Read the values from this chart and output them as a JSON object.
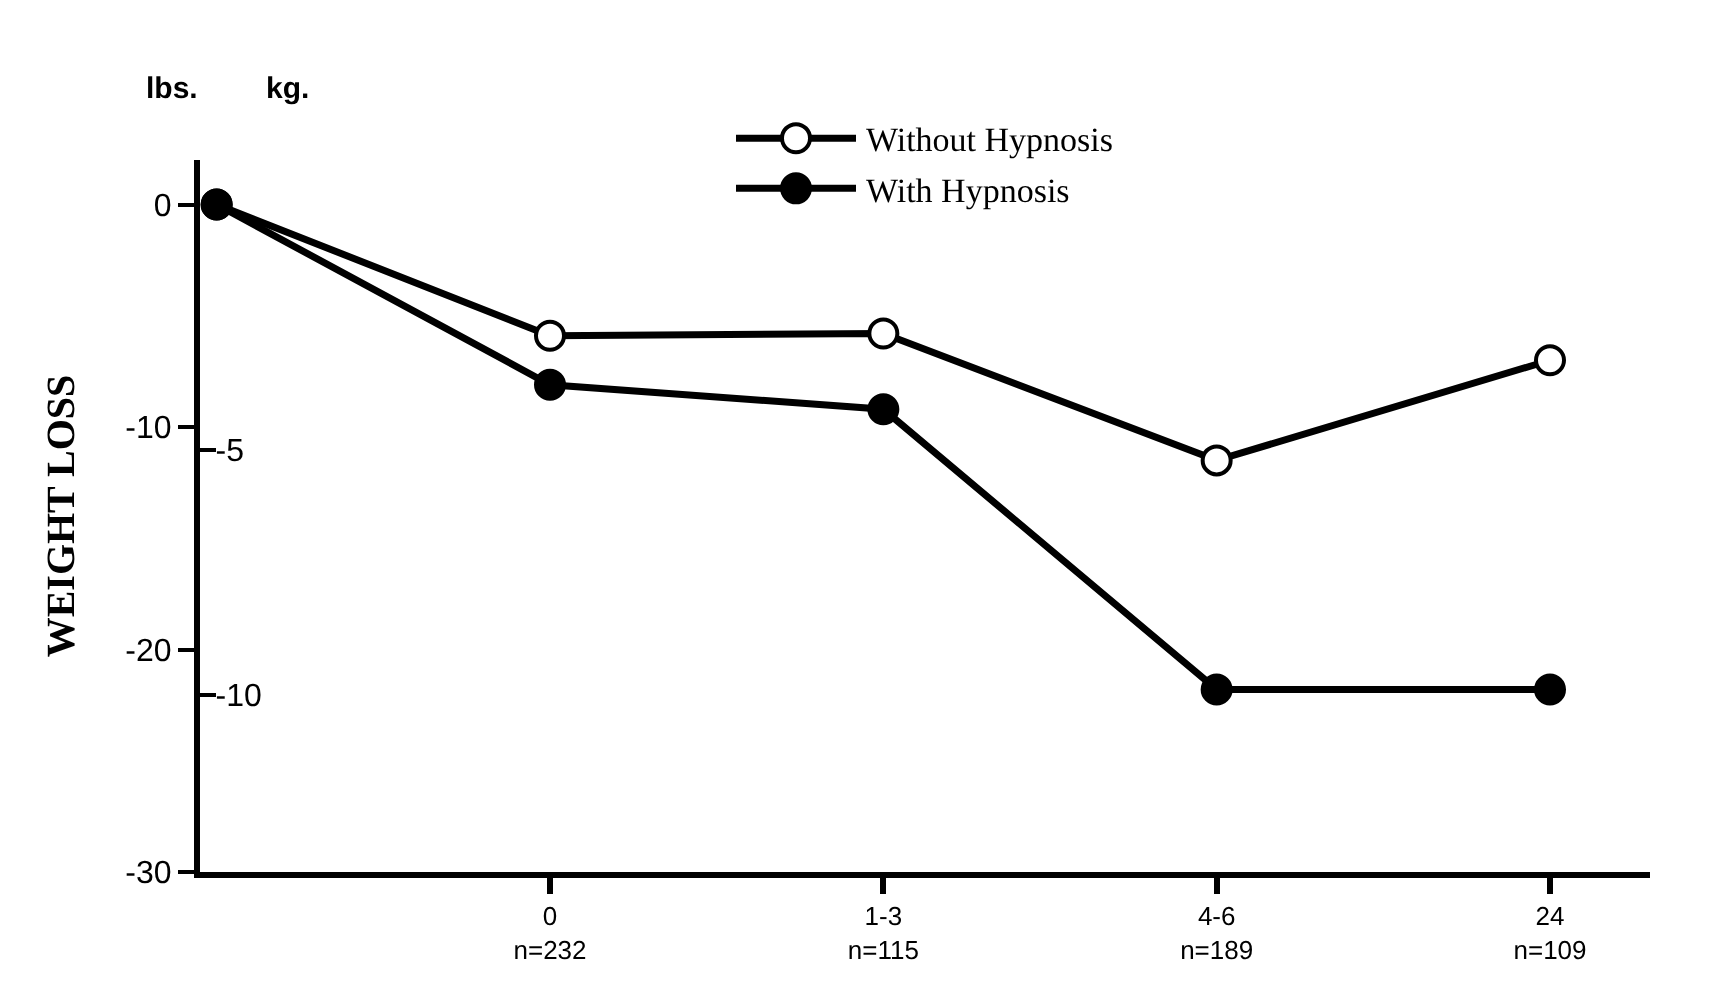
{
  "chart_data": {
    "type": "line",
    "ylabel": "WEIGHT LOSS",
    "title": "lbs.",
    "y2label": "kg.",
    "categories": [
      null,
      "0\nn=232",
      "1-3\nn=115",
      "4-6\nn=189",
      "24\nn=109"
    ],
    "series": [
      {
        "name": "Without Hypnosis",
        "color": "#000000",
        "marker": "circle-open",
        "values": [
          0,
          -5.9,
          -5.8,
          -11.5,
          -7.0
        ]
      },
      {
        "name": "With Hypnosis",
        "color": "#000000",
        "marker": "circle",
        "values": [
          0,
          -8.1,
          -9.2,
          -21.8,
          -21.8
        ]
      }
    ],
    "ylim": [
      -30,
      2
    ],
    "yticks": [
      0,
      -10,
      -20,
      -30
    ],
    "y2lim": [
      -13.6,
      0.9
    ],
    "y2ticks": [
      -5,
      -10
    ],
    "legend": "top",
    "grid": false,
    "line_style": "solid"
  }
}
